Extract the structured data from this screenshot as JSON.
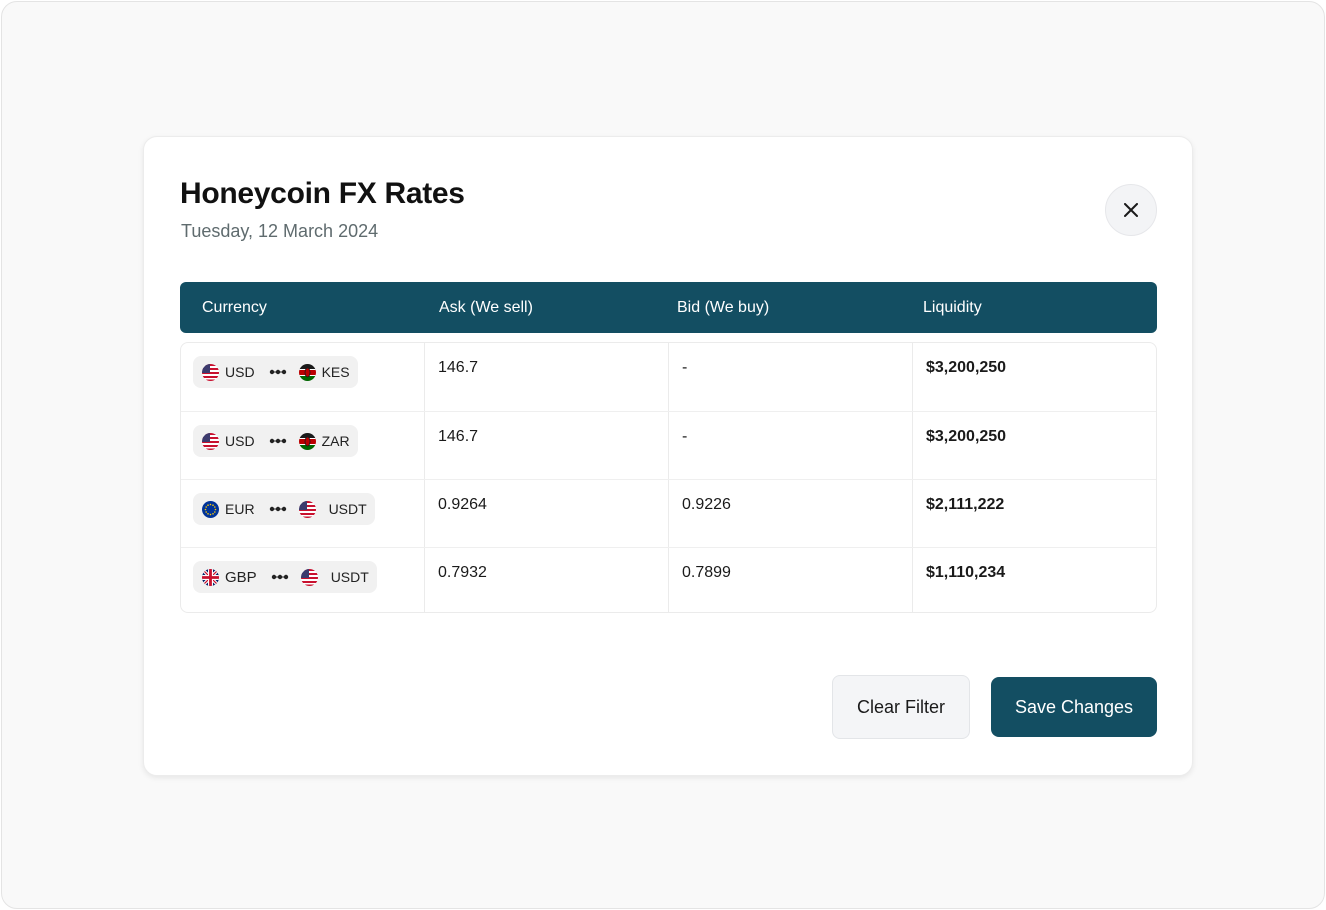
{
  "modal": {
    "title": "Honeycoin FX Rates",
    "date": "Tuesday, 12 March 2024",
    "close_icon": "close-icon"
  },
  "table": {
    "columns": [
      "Currency",
      "Ask (We sell)",
      "Bid (We buy)",
      "Liquidity"
    ],
    "rows": [
      {
        "from": "USD",
        "from_flag": "us-flag-icon",
        "to": "KES",
        "to_flag": "kenya-flag-icon",
        "ask": "146.7",
        "bid": "-",
        "liquidity": "$3,200,250"
      },
      {
        "from": "USD",
        "from_flag": "us-flag-icon",
        "to": "ZAR",
        "to_flag": "kenya-flag-icon",
        "ask": "146.7",
        "bid": "-",
        "liquidity": "$3,200,250"
      },
      {
        "from": "EUR",
        "from_flag": "eu-flag-icon",
        "to": "USDT",
        "to_flag": "us-flag-icon",
        "ask": "0.9264",
        "bid": "0.9226",
        "liquidity": "$2,111,222"
      },
      {
        "from": "GBP",
        "from_flag": "uk-flag-icon",
        "to": "USDT",
        "to_flag": "us-flag-icon",
        "ask": "0.7932",
        "bid": "0.7899",
        "liquidity": "$1,110,234"
      }
    ]
  },
  "actions": {
    "clear_label": "Clear Filter",
    "save_label": "Save Changes"
  },
  "colors": {
    "primary": "#134e62",
    "background": "#f9f9f9",
    "secondary_button": "#f4f5f7"
  }
}
